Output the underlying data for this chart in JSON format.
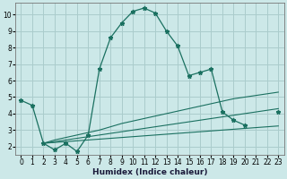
{
  "xlabel": "Humidex (Indice chaleur)",
  "bg_color": "#cce8e8",
  "grid_color": "#aacccc",
  "line_color": "#1a7060",
  "xlim": [
    -0.5,
    23.5
  ],
  "ylim": [
    1.5,
    10.7
  ],
  "xticks": [
    0,
    1,
    2,
    3,
    4,
    5,
    6,
    7,
    8,
    9,
    10,
    11,
    12,
    13,
    14,
    15,
    16,
    17,
    18,
    19,
    20,
    21,
    22,
    23
  ],
  "yticks": [
    2,
    3,
    4,
    5,
    6,
    7,
    8,
    9,
    10
  ],
  "curve1_x": [
    0,
    1,
    2,
    3,
    4,
    5,
    6,
    7,
    8,
    9,
    10,
    11,
    12,
    13,
    14,
    15,
    16,
    17,
    18,
    19,
    20,
    21,
    23
  ],
  "curve1_y": [
    4.8,
    4.5,
    2.2,
    1.8,
    2.2,
    1.7,
    2.7,
    6.7,
    8.6,
    9.5,
    10.2,
    10.4,
    10.1,
    9.0,
    8.1,
    6.3,
    6.5,
    6.7,
    4.1,
    3.6,
    3.3,
    null,
    4.1
  ],
  "trend_lines": [
    {
      "x": [
        2,
        3,
        4,
        5,
        6,
        7,
        8,
        9,
        10,
        11,
        12,
        13,
        14,
        15,
        16,
        17,
        18,
        19,
        20,
        21,
        22,
        23
      ],
      "y": [
        2.2,
        2.25,
        2.3,
        2.35,
        2.4,
        2.45,
        2.5,
        2.55,
        2.6,
        2.65,
        2.7,
        2.75,
        2.8,
        2.85,
        2.9,
        2.95,
        3.0,
        3.05,
        3.1,
        3.15,
        3.2,
        3.25
      ]
    },
    {
      "x": [
        2,
        3,
        4,
        5,
        6,
        7,
        8,
        9,
        10,
        11,
        12,
        13,
        14,
        15,
        16,
        17,
        18,
        19,
        20,
        21,
        22,
        23
      ],
      "y": [
        2.2,
        2.3,
        2.4,
        2.5,
        2.6,
        2.7,
        2.8,
        2.9,
        3.0,
        3.1,
        3.2,
        3.3,
        3.4,
        3.5,
        3.6,
        3.7,
        3.8,
        3.9,
        4.0,
        4.1,
        4.2,
        4.3
      ]
    },
    {
      "x": [
        2,
        3,
        4,
        5,
        6,
        7,
        8,
        9,
        10,
        11,
        12,
        13,
        14,
        15,
        16,
        17,
        18,
        19,
        20,
        21,
        22,
        23
      ],
      "y": [
        2.2,
        2.4,
        2.55,
        2.7,
        2.85,
        3.0,
        3.2,
        3.4,
        3.55,
        3.7,
        3.85,
        4.0,
        4.15,
        4.3,
        4.45,
        4.6,
        4.75,
        4.9,
        5.0,
        5.1,
        5.2,
        5.3
      ]
    }
  ],
  "marker_pts_x": [
    0,
    1,
    2,
    3,
    4,
    5,
    6,
    7,
    8,
    9,
    10,
    11,
    12,
    13,
    14,
    15,
    16,
    17,
    18,
    19,
    20,
    21,
    23
  ],
  "marker_pts_y": [
    4.8,
    4.5,
    2.2,
    1.8,
    2.2,
    1.7,
    2.7,
    6.7,
    8.6,
    9.5,
    10.2,
    10.4,
    10.1,
    9.0,
    8.1,
    6.3,
    6.5,
    6.7,
    4.1,
    3.6,
    3.3,
    null,
    4.1
  ]
}
